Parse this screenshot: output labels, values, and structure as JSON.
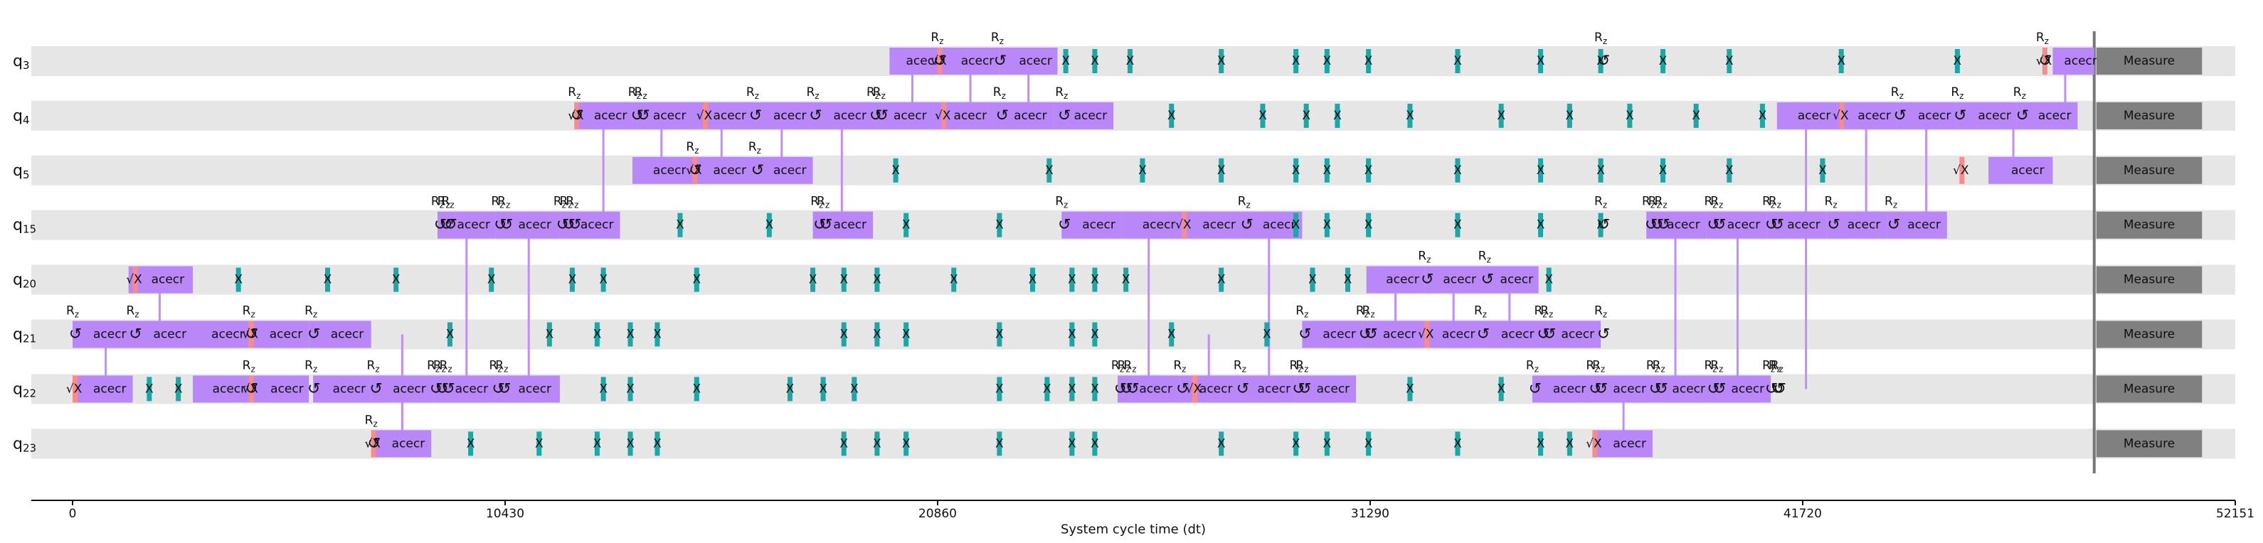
{
  "axis": {
    "title": "System cycle time (dt)",
    "min": 0,
    "max": 52151,
    "ticks": [
      0,
      10430,
      20860,
      31290,
      41720,
      52151
    ]
  },
  "qubits": [
    {
      "base": "q",
      "sub": "3"
    },
    {
      "base": "q",
      "sub": "4"
    },
    {
      "base": "q",
      "sub": "5"
    },
    {
      "base": "q",
      "sub": "15"
    },
    {
      "base": "q",
      "sub": "20"
    },
    {
      "base": "q",
      "sub": "21"
    },
    {
      "base": "q",
      "sub": "22"
    },
    {
      "base": "q",
      "sub": "23"
    }
  ],
  "labels": {
    "gate": "acecr",
    "sx": "√X",
    "x": "X",
    "rz_base": "R",
    "rz_sub": "z",
    "rz_symbol": "↺",
    "measure": "Measure"
  },
  "colors": {
    "row_bg": "#e6e6e6",
    "ecr": "#b987f7",
    "sx": "#f78c8c",
    "x": "#1aa7a7",
    "measure": "#808080",
    "link": "#c18ef7",
    "barrier": "#777777"
  },
  "barrier_time": 48750,
  "measure": {
    "start": 48750,
    "end": 51350
  },
  "ecr_gates": [
    [
      0,
      19700,
      20950
    ],
    [
      0,
      20950,
      22350
    ],
    [
      0,
      22350,
      23750
    ],
    [
      0,
      47750,
      48750
    ],
    [
      1,
      12100,
      13500
    ],
    [
      1,
      13500,
      14950
    ],
    [
      1,
      14950,
      16400
    ],
    [
      1,
      16400,
      17850
    ],
    [
      1,
      17850,
      19300
    ],
    [
      1,
      19300,
      20750
    ],
    [
      1,
      20750,
      22200
    ],
    [
      1,
      22200,
      23650
    ],
    [
      1,
      23650,
      25100
    ],
    [
      1,
      41100,
      42550
    ],
    [
      1,
      42550,
      44000
    ],
    [
      1,
      44000,
      45450
    ],
    [
      1,
      45450,
      46900
    ],
    [
      1,
      46900,
      48350
    ],
    [
      2,
      13500,
      14950
    ],
    [
      2,
      14950,
      16400
    ],
    [
      2,
      16400,
      17850
    ],
    [
      2,
      46200,
      47750
    ],
    [
      3,
      8800,
      10200
    ],
    [
      3,
      10200,
      11750
    ],
    [
      3,
      11750,
      13200
    ],
    [
      3,
      17850,
      19300
    ],
    [
      3,
      23850,
      25300
    ],
    [
      3,
      25300,
      26750
    ],
    [
      3,
      26750,
      28200
    ],
    [
      3,
      28200,
      29650
    ],
    [
      3,
      37950,
      39400
    ],
    [
      3,
      39400,
      40850
    ],
    [
      3,
      40850,
      42300
    ],
    [
      3,
      42300,
      43750
    ],
    [
      3,
      43750,
      45200
    ],
    [
      4,
      1350,
      2900
    ],
    [
      4,
      31200,
      32600
    ],
    [
      4,
      32600,
      33950
    ],
    [
      4,
      33950,
      35350
    ],
    [
      5,
      0,
      1450
    ],
    [
      5,
      1450,
      2900
    ],
    [
      5,
      2900,
      4250
    ],
    [
      5,
      4250,
      5700
    ],
    [
      5,
      5700,
      7200
    ],
    [
      5,
      29650,
      31100
    ],
    [
      5,
      31100,
      32550
    ],
    [
      5,
      32550,
      33950
    ],
    [
      5,
      33950,
      35400
    ],
    [
      5,
      35400,
      36850
    ],
    [
      6,
      0,
      1450
    ],
    [
      6,
      2900,
      4300
    ],
    [
      6,
      4300,
      5700
    ],
    [
      6,
      5800,
      7200
    ],
    [
      6,
      7200,
      8700
    ],
    [
      6,
      8700,
      10200
    ],
    [
      6,
      10200,
      11750
    ],
    [
      6,
      25200,
      26700
    ],
    [
      6,
      26700,
      28100
    ],
    [
      6,
      28100,
      29500
    ],
    [
      6,
      29500,
      30950
    ],
    [
      6,
      35200,
      36650
    ],
    [
      6,
      36650,
      38100
    ],
    [
      6,
      38100,
      39500
    ],
    [
      6,
      39500,
      40950
    ],
    [
      7,
      7200,
      8650
    ],
    [
      7,
      36650,
      38100
    ]
  ],
  "sx_marks": [
    [
      0,
      20850
    ],
    [
      0,
      47500
    ],
    [
      1,
      12100
    ],
    [
      1,
      15200
    ],
    [
      1,
      20950
    ],
    [
      1,
      42600
    ],
    [
      2,
      14950
    ],
    [
      2,
      45500
    ],
    [
      3,
      26750
    ],
    [
      4,
      1450
    ],
    [
      5,
      4250
    ],
    [
      5,
      32600
    ],
    [
      6,
      0
    ],
    [
      6,
      4250
    ],
    [
      6,
      27000
    ],
    [
      7,
      7200
    ],
    [
      7,
      36650
    ]
  ],
  "rz_marks": [
    [
      0,
      20850
    ],
    [
      0,
      22300
    ],
    [
      0,
      47500
    ],
    [
      1,
      12100
    ],
    [
      1,
      13550
    ],
    [
      1,
      13700
    ],
    [
      1,
      16400
    ],
    [
      1,
      17850
    ],
    [
      1,
      19300
    ],
    [
      1,
      19450
    ],
    [
      1,
      22350
    ],
    [
      1,
      23850
    ],
    [
      1,
      44000
    ],
    [
      1,
      45450
    ],
    [
      1,
      46950
    ],
    [
      2,
      14950
    ],
    [
      2,
      16450
    ],
    [
      3,
      8800
    ],
    [
      3,
      8950
    ],
    [
      3,
      9050
    ],
    [
      3,
      10250
    ],
    [
      3,
      10400
    ],
    [
      3,
      11750
    ],
    [
      3,
      11900
    ],
    [
      3,
      12050
    ],
    [
      3,
      17950
    ],
    [
      3,
      18100
    ],
    [
      3,
      23850
    ],
    [
      3,
      28250
    ],
    [
      3,
      38000
    ],
    [
      3,
      38150
    ],
    [
      3,
      38300
    ],
    [
      3,
      39500
    ],
    [
      3,
      39650
    ],
    [
      3,
      40900
    ],
    [
      3,
      41050
    ],
    [
      3,
      42400
    ],
    [
      3,
      43850
    ],
    [
      4,
      32600
    ],
    [
      4,
      34050
    ],
    [
      5,
      0
    ],
    [
      5,
      1450
    ],
    [
      5,
      4250
    ],
    [
      5,
      5750
    ],
    [
      5,
      29650
    ],
    [
      5,
      31100
    ],
    [
      5,
      31250
    ],
    [
      5,
      33950
    ],
    [
      5,
      35400
    ],
    [
      5,
      35550
    ],
    [
      6,
      4250
    ],
    [
      6,
      5750
    ],
    [
      6,
      7250
    ],
    [
      6,
      8700
    ],
    [
      6,
      8850
    ],
    [
      6,
      9000
    ],
    [
      6,
      10200
    ],
    [
      6,
      10350
    ],
    [
      6,
      25200
    ],
    [
      6,
      25350
    ],
    [
      6,
      25500
    ],
    [
      6,
      26700
    ],
    [
      6,
      28150
    ],
    [
      6,
      29500
    ],
    [
      6,
      29650
    ],
    [
      6,
      35200
    ],
    [
      6,
      36650
    ],
    [
      6,
      36800
    ],
    [
      6,
      38100
    ],
    [
      6,
      38250
    ],
    [
      6,
      39500
    ],
    [
      6,
      39650
    ],
    [
      6,
      40900
    ],
    [
      6,
      41050
    ],
    [
      7,
      7200
    ]
  ],
  "rz_only": [
    [
      0,
      36850
    ],
    [
      3,
      36850
    ],
    [
      5,
      36850
    ],
    [
      6,
      41100
    ]
  ],
  "x_marks": [
    [
      0,
      23950
    ],
    [
      0,
      24650
    ],
    [
      0,
      25500
    ],
    [
      0,
      27700
    ],
    [
      0,
      29500
    ],
    [
      0,
      30250
    ],
    [
      0,
      31250
    ],
    [
      0,
      33400
    ],
    [
      0,
      35400
    ],
    [
      0,
      36850
    ],
    [
      0,
      38350
    ],
    [
      0,
      39950
    ],
    [
      0,
      42650
    ],
    [
      0,
      45450
    ],
    [
      1,
      26500
    ],
    [
      1,
      28700
    ],
    [
      1,
      29750
    ],
    [
      1,
      30500
    ],
    [
      1,
      32250
    ],
    [
      1,
      34450
    ],
    [
      1,
      36100
    ],
    [
      1,
      37550
    ],
    [
      1,
      39150
    ],
    [
      1,
      40750
    ],
    [
      2,
      19850
    ],
    [
      2,
      23550
    ],
    [
      2,
      25800
    ],
    [
      2,
      27700
    ],
    [
      2,
      29500
    ],
    [
      2,
      30250
    ],
    [
      2,
      31250
    ],
    [
      2,
      33400
    ],
    [
      2,
      35400
    ],
    [
      2,
      36850
    ],
    [
      2,
      38350
    ],
    [
      2,
      39950
    ],
    [
      2,
      42200
    ],
    [
      3,
      14650
    ],
    [
      3,
      16800
    ],
    [
      3,
      20100
    ],
    [
      3,
      22350
    ],
    [
      3,
      29500
    ],
    [
      3,
      30250
    ],
    [
      3,
      31250
    ],
    [
      3,
      33400
    ],
    [
      3,
      35400
    ],
    [
      3,
      36850
    ],
    [
      4,
      4000
    ],
    [
      4,
      6150
    ],
    [
      4,
      7800
    ],
    [
      4,
      10100
    ],
    [
      4,
      12050
    ],
    [
      4,
      12800
    ],
    [
      4,
      15050
    ],
    [
      4,
      17850
    ],
    [
      4,
      18600
    ],
    [
      4,
      19400
    ],
    [
      4,
      21250
    ],
    [
      4,
      23150
    ],
    [
      4,
      24100
    ],
    [
      4,
      24650
    ],
    [
      4,
      25400
    ],
    [
      4,
      27700
    ],
    [
      4,
      29900
    ],
    [
      4,
      30750
    ],
    [
      4,
      35600
    ],
    [
      5,
      9100
    ],
    [
      5,
      11500
    ],
    [
      5,
      12650
    ],
    [
      5,
      13450
    ],
    [
      5,
      14100
    ],
    [
      5,
      18600
    ],
    [
      5,
      19400
    ],
    [
      5,
      20100
    ],
    [
      5,
      22350
    ],
    [
      5,
      24100
    ],
    [
      5,
      24650
    ],
    [
      5,
      26500
    ],
    [
      5,
      28800
    ],
    [
      6,
      1850
    ],
    [
      6,
      2550
    ],
    [
      6,
      12800
    ],
    [
      6,
      13450
    ],
    [
      6,
      15050
    ],
    [
      6,
      17300
    ],
    [
      6,
      18100
    ],
    [
      6,
      18850
    ],
    [
      6,
      22350
    ],
    [
      6,
      23500
    ],
    [
      6,
      24100
    ],
    [
      6,
      24650
    ],
    [
      6,
      32250
    ],
    [
      6,
      34450
    ],
    [
      7,
      9600
    ],
    [
      7,
      11250
    ],
    [
      7,
      12650
    ],
    [
      7,
      13450
    ],
    [
      7,
      14100
    ],
    [
      7,
      18600
    ],
    [
      7,
      19400
    ],
    [
      7,
      20100
    ],
    [
      7,
      22350
    ],
    [
      7,
      24100
    ],
    [
      7,
      24650
    ],
    [
      7,
      27700
    ],
    [
      7,
      29500
    ],
    [
      7,
      30250
    ],
    [
      7,
      31250
    ],
    [
      7,
      33400
    ],
    [
      7,
      35400
    ],
    [
      7,
      36100
    ]
  ],
  "links": [
    [
      0,
      1,
      20250
    ],
    [
      0,
      1,
      21650
    ],
    [
      0,
      1,
      23050
    ],
    [
      0,
      1,
      48050
    ],
    [
      1,
      2,
      14200
    ],
    [
      1,
      2,
      15650
    ],
    [
      1,
      2,
      17100
    ],
    [
      1,
      3,
      12800
    ],
    [
      1,
      3,
      18550
    ],
    [
      1,
      6,
      41800
    ],
    [
      1,
      3,
      43250
    ],
    [
      1,
      3,
      44700
    ],
    [
      1,
      2,
      46800
    ],
    [
      3,
      6,
      9500
    ],
    [
      3,
      6,
      11000
    ],
    [
      3,
      6,
      25950
    ],
    [
      3,
      6,
      28850
    ],
    [
      3,
      6,
      38650
    ],
    [
      3,
      6,
      40150
    ],
    [
      4,
      5,
      2100
    ],
    [
      4,
      5,
      31900
    ],
    [
      4,
      5,
      33300
    ],
    [
      4,
      5,
      34650
    ],
    [
      5,
      6,
      800
    ],
    [
      5,
      7,
      7950
    ],
    [
      5,
      6,
      27400
    ],
    [
      6,
      7,
      37400
    ]
  ]
}
